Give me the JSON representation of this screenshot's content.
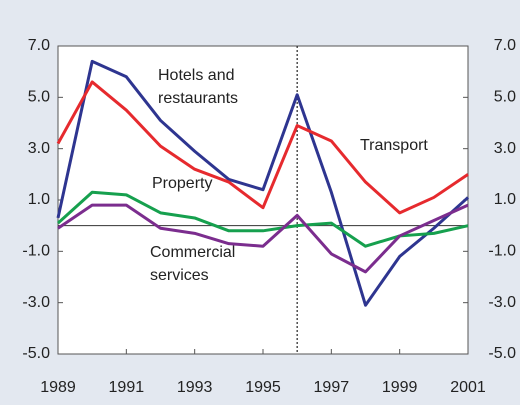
{
  "chart_data": {
    "type": "line",
    "x": [
      1989,
      1990,
      1991,
      1992,
      1993,
      1994,
      1995,
      1996,
      1997,
      1998,
      1999,
      2000,
      2001
    ],
    "xlim": [
      1989,
      2001
    ],
    "xticks": [
      1989,
      1991,
      1993,
      1995,
      1997,
      1999,
      2001
    ],
    "ylim": [
      -5,
      7
    ],
    "yticks": [
      {
        "value": -5,
        "label": "-5.0"
      },
      {
        "value": -3,
        "label": "-3.0"
      },
      {
        "value": -1,
        "label": "-1.0"
      },
      {
        "value": 1,
        "label": "1.0"
      },
      {
        "value": 3,
        "label": "3.0"
      },
      {
        "value": 5,
        "label": "5.0"
      },
      {
        "value": 7,
        "label": "7.0"
      }
    ],
    "hline": 0,
    "vline": 1996,
    "series": [
      {
        "label": [
          "Hotels and",
          "restaurants"
        ],
        "color": "#2e3590",
        "values": [
          0.3,
          6.4,
          5.8,
          4.1,
          2.9,
          1.8,
          1.4,
          5.1,
          1.3,
          -3.1,
          -1.2,
          -0.1,
          1.1
        ]
      },
      {
        "label": [
          "Transport"
        ],
        "color": "#e62a2e",
        "values": [
          3.2,
          5.6,
          4.5,
          3.1,
          2.2,
          1.7,
          0.7,
          3.9,
          3.3,
          1.7,
          0.5,
          1.1,
          2.0
        ]
      },
      {
        "label": [
          "Property"
        ],
        "color": "#16a04e",
        "values": [
          0.1,
          1.3,
          1.2,
          0.5,
          0.3,
          -0.2,
          -0.2,
          0.0,
          0.1,
          -0.8,
          -0.4,
          -0.3,
          0.0
        ]
      },
      {
        "label": [
          "Commercial",
          "services"
        ],
        "color": "#7b2d8e",
        "values": [
          -0.1,
          0.8,
          0.8,
          -0.1,
          -0.3,
          -0.7,
          -0.8,
          0.4,
          -1.1,
          -1.8,
          -0.4,
          0.2,
          0.8
        ]
      }
    ]
  }
}
